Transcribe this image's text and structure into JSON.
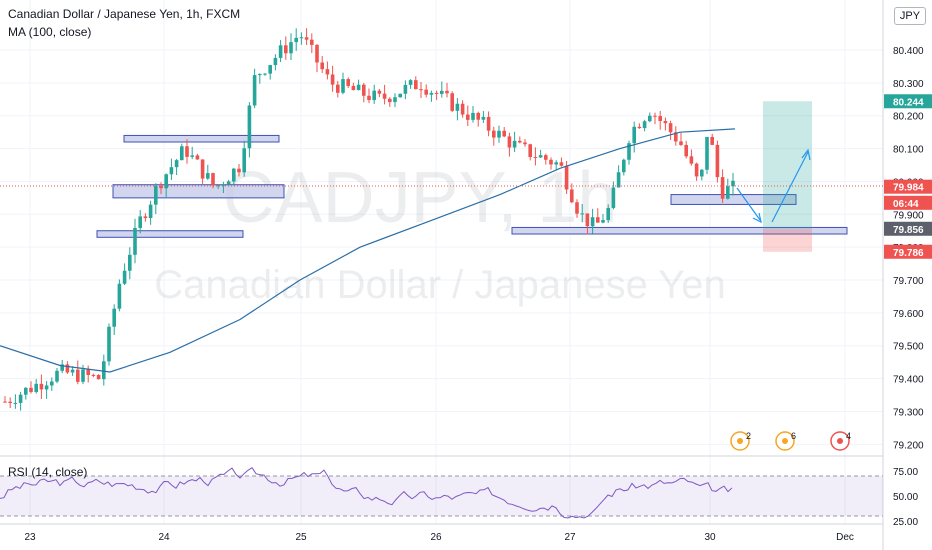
{
  "header": {
    "title": "Canadian Dollar / Japanese Yen, 1h, FXCM",
    "indicator": "MA (100, close)",
    "currency": "JPY"
  },
  "watermark": {
    "symbol": "CADJPY, 1h",
    "name": "Canadian Dollar / Japanese Yen"
  },
  "rsi": {
    "label": "RSI (14, close)",
    "ticks": [
      "75.00",
      "50.00",
      "25.00"
    ],
    "bands": [
      70,
      30
    ]
  },
  "price_axis": {
    "ticks": [
      "80.400",
      "80.300",
      "80.200",
      "80.100",
      "80.000",
      "79.900",
      "79.800",
      "79.700",
      "79.600",
      "79.500",
      "79.400",
      "79.300",
      "79.200"
    ],
    "labels": [
      {
        "text": "80.244",
        "value": 80.244,
        "color": "#26a69a"
      },
      {
        "text": "79.984",
        "value": 79.984,
        "color": "#ef5350"
      },
      {
        "text": "06:44",
        "value": 79.935,
        "color": "#ef5350"
      },
      {
        "text": "79.856",
        "value": 79.856,
        "color": "#5d606b"
      },
      {
        "text": "79.786",
        "value": 79.786,
        "color": "#ef5350"
      }
    ]
  },
  "time_axis": {
    "ticks": [
      "23",
      "24",
      "25",
      "26",
      "27",
      "30",
      "Dec"
    ]
  },
  "events": [
    {
      "count": "2",
      "color": "#f5a623"
    },
    {
      "count": "6",
      "color": "#f5a623"
    },
    {
      "count": "4",
      "color": "#ef5350"
    }
  ],
  "colors": {
    "up": "#26a69a",
    "down": "#ef5350",
    "ma": "#2a6fa8",
    "zone": "#3f51b5",
    "rsi": "#7e57c2"
  },
  "chart_data": {
    "type": "candlestick",
    "title": "Canadian Dollar / Japanese Yen, 1h, FXCM",
    "series_ma": "MA (100, close)",
    "ylim": [
      79.16,
      80.52
    ],
    "last_price": 79.984,
    "key_levels": [
      {
        "type": "zone",
        "from": 80.12,
        "to": 80.14
      },
      {
        "type": "zone",
        "from": 79.95,
        "to": 79.99
      },
      {
        "type": "zone",
        "from": 79.83,
        "to": 79.85
      },
      {
        "type": "zone",
        "from": 79.93,
        "to": 79.96
      },
      {
        "type": "zone",
        "from": 79.84,
        "to": 79.86
      }
    ],
    "position": {
      "entry": 79.856,
      "target": 80.244,
      "stop": 79.786
    }
  }
}
